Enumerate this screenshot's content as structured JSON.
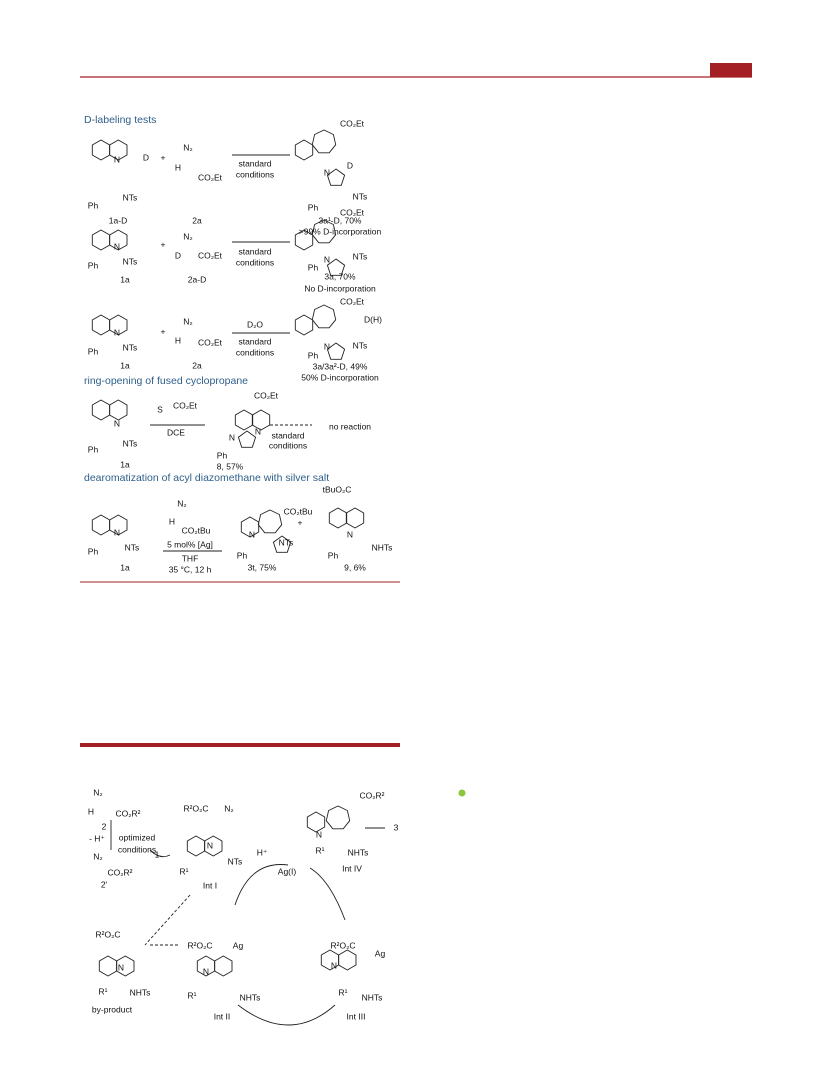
{
  "top": {
    "headings": [
      "D-labeling tests",
      "ring-opening of fused cyclopropane",
      "dearomatization of acyl diazomethane with silver salt"
    ],
    "rows": [
      [
        "N",
        "D",
        "NTs",
        "Ph",
        "1a-D",
        "+",
        "N₂",
        "H",
        "CO₂Et",
        "2a",
        "standard",
        "conditions",
        "CO₂Et",
        "N",
        "D",
        "NTs",
        "Ph",
        "3a¹-D, 70%",
        ">99% D-incorporation"
      ],
      [
        "N",
        "NTs",
        "Ph",
        "1a",
        "+",
        "N₂",
        "D",
        "CO₂Et",
        "2a-D",
        "standard",
        "conditions",
        "CO₂Et",
        "N",
        "NTs",
        "Ph",
        "3a, 70%",
        "No D-incorporation"
      ],
      [
        "N",
        "NTs",
        "Ph",
        "1a",
        "+",
        "N₂",
        "H",
        "CO₂Et",
        "2a",
        "D₂O",
        "standard",
        "conditions",
        "CO₂Et",
        "D(H)",
        "N",
        "NTs",
        "Ph",
        "3a/3a²-D, 49%",
        "50% D-incorporation"
      ],
      [
        "S",
        "CO₂Et",
        "DCE",
        "N",
        "NTs",
        "Ph",
        "1a",
        "CO₂Et",
        "N",
        "N",
        "Ph",
        "8, 57%",
        "standard",
        "conditions",
        "no reaction"
      ],
      [
        "N",
        "NTs",
        "Ph",
        "1a",
        "N₂",
        "H",
        "CO₂tBu",
        "5 mol% [Ag]",
        "THF",
        "35 °C, 12 h",
        "CO₂tBu",
        "N",
        "NTs",
        "Ph",
        "3t, 75%",
        "+",
        "tBuO₂C",
        "N",
        "NHTs",
        "Ph",
        "9, 6%"
      ]
    ]
  },
  "bottom": {
    "labels": [
      "N₂",
      "H",
      "CO₂R²",
      "2",
      "- H⁺",
      "optimized",
      "conditions",
      "N₂",
      "CO₂R²",
      "2'",
      "1",
      "R²O₂C",
      "N₂",
      "N",
      "NTs",
      "R¹",
      "Int I",
      "H⁺",
      "Ag(I)",
      "CO₂R²",
      "N",
      "R¹",
      "NHTs",
      "Int IV",
      "3",
      "R²O₂C",
      "N",
      "R¹",
      "NHTs",
      "by-product",
      "R²O₂C",
      "Ag",
      "N",
      "R¹",
      "NHTs",
      "Int II",
      "R²O₂C",
      "Ag",
      "N",
      "R¹",
      "NHTs",
      "Int III"
    ]
  }
}
